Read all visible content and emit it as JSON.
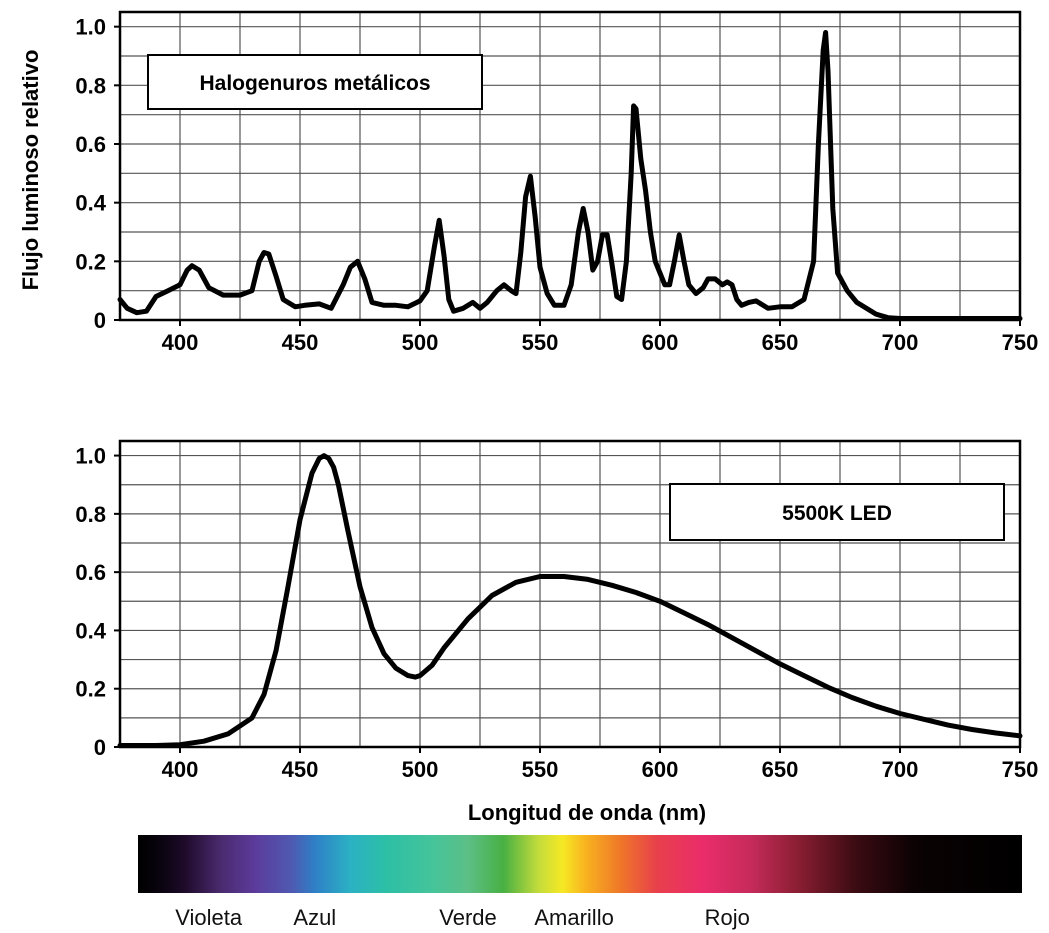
{
  "ylabel": "Flujo luminoso relativo",
  "xlabel": "Longitud de onda (nm)",
  "spectrum_bar": {
    "labels": [
      {
        "text": "Violeta",
        "wavelength": 405
      },
      {
        "text": "Azul",
        "wavelength": 450
      },
      {
        "text": "Verde",
        "wavelength": 515
      },
      {
        "text": "Amarillo",
        "wavelength": 560
      },
      {
        "text": "Rojo",
        "wavelength": 625
      }
    ],
    "stops": [
      {
        "wavelength": 375,
        "color": "#000000"
      },
      {
        "wavelength": 385,
        "color": "#0a0410"
      },
      {
        "wavelength": 395,
        "color": "#1f0b2b"
      },
      {
        "wavelength": 410,
        "color": "#4a2a6e"
      },
      {
        "wavelength": 425,
        "color": "#5c3c9c"
      },
      {
        "wavelength": 440,
        "color": "#4f59b1"
      },
      {
        "wavelength": 450,
        "color": "#2f7fc6"
      },
      {
        "wavelength": 465,
        "color": "#2bb1c4"
      },
      {
        "wavelength": 480,
        "color": "#2cbfa6"
      },
      {
        "wavelength": 500,
        "color": "#45c49a"
      },
      {
        "wavelength": 515,
        "color": "#5cbf86"
      },
      {
        "wavelength": 530,
        "color": "#48b043"
      },
      {
        "wavelength": 545,
        "color": "#c4dc3c"
      },
      {
        "wavelength": 555,
        "color": "#f6e824"
      },
      {
        "wavelength": 565,
        "color": "#f8b21f"
      },
      {
        "wavelength": 580,
        "color": "#ef7629"
      },
      {
        "wavelength": 595,
        "color": "#e8404b"
      },
      {
        "wavelength": 615,
        "color": "#ea2c6b"
      },
      {
        "wavelength": 635,
        "color": "#c62b5b"
      },
      {
        "wavelength": 655,
        "color": "#8a1e32"
      },
      {
        "wavelength": 680,
        "color": "#3a0b12"
      },
      {
        "wavelength": 705,
        "color": "#0a0203"
      },
      {
        "wavelength": 750,
        "color": "#000000"
      }
    ]
  },
  "chart_data": [
    {
      "type": "line",
      "title": "Halogenuros metálicos",
      "xlim": [
        375,
        750
      ],
      "ylim": [
        0,
        1.05
      ],
      "xticks": [
        "400",
        "450",
        "500",
        "550",
        "600",
        "650",
        "700",
        "750"
      ],
      "yticks": [
        "0",
        "0.2",
        "0.4",
        "0.6",
        "0.8",
        "1.0"
      ],
      "grid": true,
      "series": [
        {
          "x": [
            375,
            378,
            382,
            386,
            390,
            395,
            400,
            403,
            405,
            408,
            412,
            418,
            425,
            430,
            433,
            435,
            437,
            440,
            443,
            448,
            452,
            458,
            463,
            468,
            471,
            474,
            477,
            480,
            485,
            490,
            495,
            500,
            503,
            506,
            508,
            510,
            512,
            514,
            518,
            522,
            525,
            528,
            532,
            535,
            538,
            540,
            542,
            544,
            546,
            548,
            550,
            553,
            556,
            560,
            563,
            566,
            568,
            570,
            572,
            574,
            576,
            578,
            580,
            582,
            584,
            586,
            588,
            589,
            590,
            592,
            594,
            596,
            598,
            600,
            602,
            604,
            606,
            608,
            610,
            612,
            615,
            618,
            620,
            623,
            626,
            628,
            630,
            632,
            634,
            637,
            640,
            645,
            650,
            655,
            660,
            664,
            666,
            668,
            669,
            670,
            672,
            674,
            678,
            682,
            686,
            690,
            695,
            700,
            720,
            750
          ],
          "y": [
            0.07,
            0.04,
            0.025,
            0.03,
            0.08,
            0.1,
            0.12,
            0.17,
            0.185,
            0.17,
            0.11,
            0.085,
            0.085,
            0.1,
            0.2,
            0.23,
            0.225,
            0.15,
            0.07,
            0.045,
            0.05,
            0.055,
            0.04,
            0.12,
            0.18,
            0.2,
            0.14,
            0.06,
            0.05,
            0.05,
            0.045,
            0.065,
            0.1,
            0.25,
            0.34,
            0.22,
            0.07,
            0.03,
            0.04,
            0.06,
            0.04,
            0.06,
            0.1,
            0.12,
            0.1,
            0.09,
            0.23,
            0.42,
            0.49,
            0.35,
            0.18,
            0.09,
            0.05,
            0.05,
            0.12,
            0.3,
            0.38,
            0.3,
            0.17,
            0.2,
            0.29,
            0.29,
            0.19,
            0.08,
            0.07,
            0.2,
            0.5,
            0.73,
            0.72,
            0.55,
            0.44,
            0.3,
            0.2,
            0.16,
            0.12,
            0.12,
            0.2,
            0.29,
            0.2,
            0.12,
            0.09,
            0.11,
            0.14,
            0.14,
            0.12,
            0.13,
            0.12,
            0.07,
            0.05,
            0.06,
            0.065,
            0.04,
            0.045,
            0.045,
            0.07,
            0.2,
            0.6,
            0.92,
            0.98,
            0.85,
            0.38,
            0.16,
            0.1,
            0.06,
            0.04,
            0.02,
            0.008,
            0.005,
            0.005,
            0.005
          ]
        }
      ]
    },
    {
      "type": "line",
      "title": "5500K LED",
      "xlim": [
        375,
        750
      ],
      "ylim": [
        0,
        1.05
      ],
      "xticks": [
        "400",
        "450",
        "500",
        "550",
        "600",
        "650",
        "700",
        "750"
      ],
      "yticks": [
        "0",
        "0.2",
        "0.4",
        "0.6",
        "0.8",
        "1.0"
      ],
      "grid": true,
      "series": [
        {
          "x": [
            375,
            390,
            400,
            410,
            420,
            430,
            435,
            440,
            445,
            450,
            455,
            458,
            460,
            462,
            464,
            466,
            470,
            475,
            480,
            485,
            490,
            495,
            498,
            500,
            505,
            510,
            520,
            530,
            540,
            550,
            560,
            570,
            580,
            590,
            600,
            610,
            620,
            630,
            640,
            650,
            660,
            670,
            680,
            690,
            700,
            710,
            720,
            730,
            740,
            750
          ],
          "y": [
            0.005,
            0.005,
            0.008,
            0.02,
            0.045,
            0.1,
            0.18,
            0.33,
            0.55,
            0.78,
            0.94,
            0.99,
            1.0,
            0.99,
            0.96,
            0.9,
            0.74,
            0.55,
            0.41,
            0.32,
            0.27,
            0.245,
            0.24,
            0.245,
            0.28,
            0.34,
            0.44,
            0.52,
            0.565,
            0.585,
            0.585,
            0.575,
            0.555,
            0.53,
            0.5,
            0.46,
            0.42,
            0.375,
            0.33,
            0.285,
            0.245,
            0.205,
            0.17,
            0.14,
            0.115,
            0.095,
            0.075,
            0.06,
            0.048,
            0.038
          ]
        }
      ]
    }
  ]
}
